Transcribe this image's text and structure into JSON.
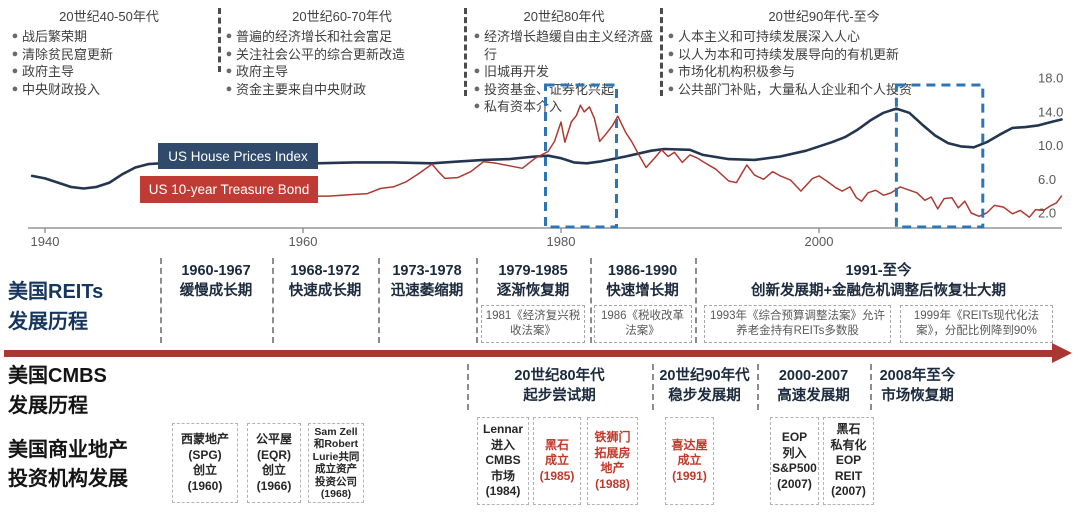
{
  "eras": {
    "columns": [
      {
        "title": "20世纪40-50年代",
        "bullets": [
          "战后繁荣期",
          "清除贫民窟更新",
          "政府主导",
          "中央财政投入"
        ]
      },
      {
        "title": "20世纪60-70年代",
        "bullets": [
          "普遍的经济增长和社会富足",
          "关注社会公平的综合更新改造",
          "政府主导",
          "资金主要来自中央财政"
        ]
      },
      {
        "title": "20世纪80年代",
        "bullets": [
          "经济增长趋缓自由主义经济盛行",
          "旧城再开发",
          "投资基金、证券化兴起",
          "私有资本介入"
        ]
      },
      {
        "title": "20世纪90年代-至今",
        "bullets": [
          "人本主义和可持续发展深入人心",
          "以人为本和可持续发展导向的有机更新",
          "市场化机构积极参与",
          "公共部门补贴，大量私人企业和个人投资"
        ]
      }
    ]
  },
  "chart": {
    "legend_house": "US House Prices Index",
    "legend_bond": "US 10-year Treasure Bond",
    "x_ticks": [
      "1940",
      "1960",
      "1980",
      "2000"
    ],
    "y_ticks": [
      "18.0",
      "14.0",
      "10.0",
      "6.0",
      "2.0"
    ]
  },
  "chart_data": {
    "type": "line",
    "x_ticks": [
      1940,
      1960,
      1980,
      2000
    ],
    "y_ticks": [
      2.0,
      6.0,
      10.0,
      14.0,
      18.0
    ],
    "y_axis_side": "right",
    "x_range": [
      1939,
      2019
    ],
    "y_range": [
      0,
      19
    ],
    "highlight_boxes": [
      {
        "from_year": 1978.8,
        "to_year": 1984.3
      },
      {
        "from_year": 2006.0,
        "to_year": 2012.7
      }
    ],
    "series": [
      {
        "name": "US House Prices Index",
        "color": "#24364F",
        "points": [
          [
            1939,
            6.4
          ],
          [
            1940,
            6.1
          ],
          [
            1941,
            5.6
          ],
          [
            1942,
            5.1
          ],
          [
            1943,
            4.9
          ],
          [
            1944,
            5.1
          ],
          [
            1945,
            5.6
          ],
          [
            1946,
            6.6
          ],
          [
            1947,
            7.4
          ],
          [
            1948,
            7.8
          ],
          [
            1949,
            7.9
          ],
          [
            1950,
            7.8
          ],
          [
            1951,
            7.6
          ],
          [
            1952,
            7.4
          ],
          [
            1953,
            7.4
          ],
          [
            1955,
            7.7
          ],
          [
            1957,
            7.4
          ],
          [
            1959,
            7.8
          ],
          [
            1961,
            7.9
          ],
          [
            1964,
            8.0
          ],
          [
            1967,
            8.0
          ],
          [
            1970,
            7.9
          ],
          [
            1972,
            8.1
          ],
          [
            1974,
            8.3
          ],
          [
            1976,
            8.4
          ],
          [
            1978,
            8.7
          ],
          [
            1979,
            8.8
          ],
          [
            1980,
            8.5
          ],
          [
            1981,
            8.0
          ],
          [
            1982,
            7.9
          ],
          [
            1983,
            8.1
          ],
          [
            1985,
            8.7
          ],
          [
            1987,
            9.4
          ],
          [
            1988,
            9.6
          ],
          [
            1990,
            9.5
          ],
          [
            1991,
            8.9
          ],
          [
            1993,
            8.4
          ],
          [
            1995,
            8.3
          ],
          [
            1997,
            8.7
          ],
          [
            1999,
            9.4
          ],
          [
            2001,
            10.4
          ],
          [
            2002,
            11.0
          ],
          [
            2003,
            11.9
          ],
          [
            2004,
            13.0
          ],
          [
            2005,
            13.9
          ],
          [
            2006,
            14.4
          ],
          [
            2007,
            13.9
          ],
          [
            2008,
            12.5
          ],
          [
            2009,
            11.2
          ],
          [
            2010,
            10.3
          ],
          [
            2011,
            9.9
          ],
          [
            2012,
            9.8
          ],
          [
            2013,
            10.4
          ],
          [
            2014,
            11.3
          ],
          [
            2015,
            12.1
          ],
          [
            2016,
            12.2
          ],
          [
            2017,
            12.4
          ],
          [
            2018,
            12.8
          ],
          [
            2018.8,
            13.1
          ]
        ]
      },
      {
        "name": "US 10-year Treasure Bond",
        "color": "#AD3A32",
        "points": [
          [
            1961,
            4.0
          ],
          [
            1962,
            4.0
          ],
          [
            1963,
            4.1
          ],
          [
            1964,
            4.2
          ],
          [
            1965,
            4.3
          ],
          [
            1966,
            4.9
          ],
          [
            1967,
            5.1
          ],
          [
            1968,
            5.7
          ],
          [
            1969,
            6.7
          ],
          [
            1970,
            7.8
          ],
          [
            1970.5,
            6.9
          ],
          [
            1971,
            6.1
          ],
          [
            1972,
            6.2
          ],
          [
            1973,
            6.9
          ],
          [
            1974,
            8.1
          ],
          [
            1975,
            7.9
          ],
          [
            1976,
            7.6
          ],
          [
            1977,
            7.3
          ],
          [
            1978,
            8.5
          ],
          [
            1979,
            9.3
          ],
          [
            1979.5,
            10.5
          ],
          [
            1980,
            12.8
          ],
          [
            1980.3,
            10.4
          ],
          [
            1980.8,
            12.8
          ],
          [
            1981.2,
            13.6
          ],
          [
            1981.5,
            14.8
          ],
          [
            1981.8,
            14.0
          ],
          [
            1982.2,
            14.6
          ],
          [
            1982.6,
            13.2
          ],
          [
            1983,
            10.5
          ],
          [
            1983.5,
            11.4
          ],
          [
            1984,
            12.4
          ],
          [
            1984.4,
            13.5
          ],
          [
            1985,
            11.6
          ],
          [
            1985.5,
            10.4
          ],
          [
            1986,
            9.0
          ],
          [
            1986.6,
            7.4
          ],
          [
            1987.3,
            8.6
          ],
          [
            1987.8,
            9.5
          ],
          [
            1988.3,
            8.7
          ],
          [
            1988.8,
            9.2
          ],
          [
            1989.4,
            8.0
          ],
          [
            1990,
            8.9
          ],
          [
            1990.6,
            8.5
          ],
          [
            1991,
            8.1
          ],
          [
            1992,
            7.2
          ],
          [
            1993,
            5.8
          ],
          [
            1993.6,
            5.6
          ],
          [
            1994.4,
            7.7
          ],
          [
            1995,
            6.5
          ],
          [
            1995.7,
            6.0
          ],
          [
            1996.4,
            6.9
          ],
          [
            1997,
            6.4
          ],
          [
            1997.8,
            5.9
          ],
          [
            1998.6,
            4.6
          ],
          [
            1999.5,
            6.1
          ],
          [
            2000,
            6.4
          ],
          [
            2000.6,
            5.8
          ],
          [
            2001.3,
            5.0
          ],
          [
            2001.8,
            4.6
          ],
          [
            2002.4,
            5.1
          ],
          [
            2002.9,
            3.8
          ],
          [
            2003.3,
            3.4
          ],
          [
            2003.8,
            4.4
          ],
          [
            2004.4,
            4.7
          ],
          [
            2005,
            4.1
          ],
          [
            2005.6,
            4.4
          ],
          [
            2006.3,
            5.1
          ],
          [
            2007,
            4.7
          ],
          [
            2007.6,
            4.4
          ],
          [
            2008.2,
            3.5
          ],
          [
            2008.7,
            3.9
          ],
          [
            2009.2,
            2.5
          ],
          [
            2009.7,
            3.7
          ],
          [
            2010.3,
            3.8
          ],
          [
            2010.8,
            2.6
          ],
          [
            2011.3,
            3.4
          ],
          [
            2011.8,
            2.0
          ],
          [
            2012.4,
            1.6
          ],
          [
            2013,
            2.0
          ],
          [
            2013.6,
            2.9
          ],
          [
            2014.3,
            2.7
          ],
          [
            2015,
            1.9
          ],
          [
            2015.6,
            2.3
          ],
          [
            2016.3,
            1.5
          ],
          [
            2016.8,
            2.4
          ],
          [
            2017.4,
            2.3
          ],
          [
            2018,
            2.9
          ],
          [
            2018.4,
            3.2
          ],
          [
            2018.8,
            4.0
          ]
        ]
      }
    ]
  },
  "reits": {
    "label": [
      "美国REITs",
      "发展历程"
    ],
    "periods": [
      {
        "range": "1960-1967",
        "name": "缓慢成长期",
        "laws": []
      },
      {
        "range": "1968-1972",
        "name": "快速成长期",
        "laws": []
      },
      {
        "range": "1973-1978",
        "name": "迅速萎缩期",
        "laws": []
      },
      {
        "range": "1979-1985",
        "name": "逐渐恢复期",
        "laws": [
          "1981《经济复兴税收法案》"
        ]
      },
      {
        "range": "1986-1990",
        "name": "快速增长期",
        "laws": [
          "1986《税收改革法案》"
        ]
      },
      {
        "range": "1991-至今",
        "name": "创新发展期+金融危机调整后恢复壮大期",
        "laws": [
          "1993年《综合预算调整法案》允许养老金持有REITs多数股",
          "1999年《REITs现代化法案》，分配比例降到90%"
        ]
      }
    ]
  },
  "cmbs": {
    "label": [
      "美国CMBS",
      "发展历程"
    ],
    "periods": [
      {
        "range": "20世纪80年代",
        "name": "起步尝试期"
      },
      {
        "range": "20世纪90年代",
        "name": "稳步发展期"
      },
      {
        "range": "2000-2007",
        "name": "高速发展期"
      },
      {
        "range": "2008年至今",
        "name": "市场恢复期"
      }
    ]
  },
  "institutions": {
    "label": [
      "美国商业地产",
      "投资机构发展"
    ],
    "boxes": [
      {
        "lines": [
          "西蒙地产",
          "(SPG)",
          "创立",
          "(1960)"
        ],
        "highlight": false
      },
      {
        "lines": [
          "公平屋",
          "(EQR)",
          "创立",
          "(1966)"
        ],
        "highlight": false
      },
      {
        "lines": [
          "Sam Zell",
          "和Robert",
          "Lurie共同",
          "成立资产",
          "投资公司",
          "(1968)"
        ],
        "highlight": false,
        "small": true
      },
      {
        "lines": [
          "Lennar",
          "进入",
          "CMBS",
          "市场",
          "(1984)"
        ],
        "highlight": false
      },
      {
        "lines": [
          "黑石",
          "成立",
          "(1985)"
        ],
        "highlight": true
      },
      {
        "lines": [
          "铁狮门",
          "拓展房",
          "地产",
          "(1988)"
        ],
        "highlight": true
      },
      {
        "lines": [
          "喜达屋",
          "成立",
          "(1991)"
        ],
        "highlight": true
      },
      {
        "lines": [
          "EOP",
          "列入",
          "S&P500",
          "(2007)"
        ],
        "highlight": false
      },
      {
        "lines": [
          "黑石",
          "私有化",
          "EOP",
          "REIT",
          "(2007)"
        ],
        "highlight": false
      }
    ]
  },
  "colors": {
    "legend_navy": "#2F4A6B",
    "legend_red": "#C13B35",
    "highlight_blue": "#2E75B6",
    "arrow_red": "#A93832",
    "accent_red": "#C0392B",
    "axis_gray": "#808080",
    "tick_text": "#595959"
  }
}
